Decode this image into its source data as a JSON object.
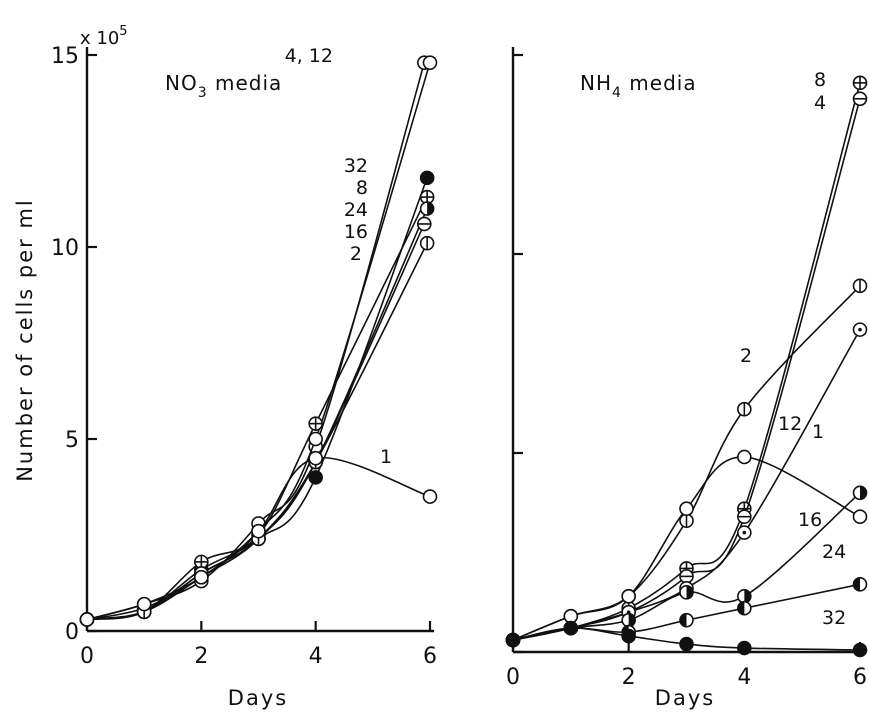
{
  "chart_data": [
    {
      "type": "line",
      "title": "NO3 media",
      "title_main": "NO",
      "title_sub": "3",
      "title_rest": " media",
      "xlabel": "Days",
      "ylabel": "Number of cells per ml",
      "y_multiplier": "x 10",
      "y_multiplier_exp": "5",
      "xlim": [
        0,
        6
      ],
      "ylim": [
        0,
        15
      ],
      "xticks": [
        0,
        2,
        4,
        6
      ],
      "yticks": [
        0,
        5,
        10,
        15
      ],
      "x_tick_labels": [
        "0",
        "2",
        "4",
        "6"
      ],
      "y_tick_labels": [
        "0",
        "5",
        "10",
        "15"
      ],
      "series": [
        {
          "label": "4, 12",
          "marker": "open",
          "x": [
            0,
            1,
            2,
            3,
            4,
            5.9
          ],
          "y": [
            0.3,
            0.7,
            1.3,
            2.8,
            4.8,
            14.8
          ]
        },
        {
          "label": "4, 12",
          "marker": "open",
          "x": [
            0,
            1,
            2,
            3,
            4,
            6
          ],
          "y": [
            0.3,
            0.6,
            1.4,
            2.6,
            5.0,
            14.8
          ]
        },
        {
          "label": "32",
          "marker": "filled",
          "x": [
            0,
            1,
            2,
            3,
            4,
            5.95
          ],
          "y": [
            0.3,
            0.5,
            1.6,
            2.4,
            4.0,
            11.8
          ]
        },
        {
          "label": "8",
          "marker": "plus",
          "x": [
            0,
            1,
            2,
            3,
            4,
            5.95
          ],
          "y": [
            0.3,
            0.5,
            1.8,
            2.5,
            5.4,
            11.3
          ]
        },
        {
          "label": "24",
          "marker": "half-right",
          "x": [
            0,
            1,
            2,
            3,
            4,
            5.95
          ],
          "y": [
            0.3,
            0.5,
            1.5,
            2.4,
            4.4,
            11.0
          ]
        },
        {
          "label": "16",
          "marker": "half-bottom",
          "x": [
            0,
            1,
            2,
            3,
            4,
            5.9
          ],
          "y": [
            0.3,
            0.5,
            1.5,
            2.4,
            4.4,
            10.6
          ]
        },
        {
          "label": "2",
          "marker": "vbar",
          "x": [
            0,
            1,
            2,
            3,
            4,
            5.95
          ],
          "y": [
            0.3,
            0.5,
            1.4,
            2.4,
            4.4,
            10.1
          ]
        },
        {
          "label": "1",
          "marker": "open",
          "x": [
            0,
            1,
            2,
            3,
            4,
            6
          ],
          "y": [
            0.3,
            0.7,
            1.4,
            2.6,
            4.5,
            3.5
          ]
        }
      ],
      "annotations": [
        "4, 12",
        "32",
        "8",
        "24",
        "16",
        "2",
        "1"
      ]
    },
    {
      "type": "line",
      "title": "NH4 media",
      "title_main": "NH",
      "title_sub": "4",
      "title_rest": " media",
      "xlabel": "Days",
      "xlim": [
        0,
        6
      ],
      "ylim": [
        0,
        15
      ],
      "xticks": [
        0,
        2,
        4,
        6
      ],
      "yticks": [
        0,
        5,
        10,
        15
      ],
      "x_tick_labels": [
        "0",
        "2",
        "4",
        "6"
      ],
      "series": [
        {
          "label": "8",
          "marker": "plus",
          "x": [
            0,
            1,
            2,
            3,
            4,
            6
          ],
          "y": [
            0.3,
            0.6,
            1.1,
            2.1,
            3.6,
            14.3
          ]
        },
        {
          "label": "4",
          "marker": "half-bottom",
          "x": [
            0,
            1,
            2,
            3,
            4,
            6
          ],
          "y": [
            0.3,
            0.6,
            1.0,
            1.9,
            3.4,
            13.9
          ]
        },
        {
          "label": "2",
          "marker": "vbar",
          "x": [
            0,
            1,
            2,
            3,
            4,
            6
          ],
          "y": [
            0.3,
            0.9,
            1.4,
            3.3,
            6.1,
            9.2
          ]
        },
        {
          "label": "12",
          "marker": "dot",
          "x": [
            0,
            1,
            2,
            3,
            4,
            6
          ],
          "y": [
            0.3,
            0.6,
            1.0,
            1.6,
            3.0,
            8.1
          ]
        },
        {
          "label": "1",
          "marker": "open",
          "x": [
            0,
            1,
            2,
            3,
            4,
            6
          ],
          "y": [
            0.3,
            0.9,
            1.4,
            3.6,
            4.9,
            3.4
          ]
        },
        {
          "label": "16",
          "marker": "half-right",
          "x": [
            0,
            1,
            2,
            3,
            4,
            6
          ],
          "y": [
            0.3,
            0.6,
            0.8,
            1.5,
            1.4,
            4.0
          ]
        },
        {
          "label": "24",
          "marker": "half-left",
          "x": [
            0,
            1,
            2,
            3,
            4,
            6
          ],
          "y": [
            0.3,
            0.6,
            0.5,
            0.8,
            1.1,
            1.7
          ]
        },
        {
          "label": "32",
          "marker": "filled",
          "x": [
            0,
            1,
            2,
            3,
            4,
            6
          ],
          "y": [
            0.3,
            0.6,
            0.4,
            0.2,
            0.1,
            0.05
          ]
        }
      ],
      "annotations": [
        "8",
        "4",
        "2",
        "12",
        "1",
        "16",
        "24",
        "32"
      ]
    }
  ]
}
